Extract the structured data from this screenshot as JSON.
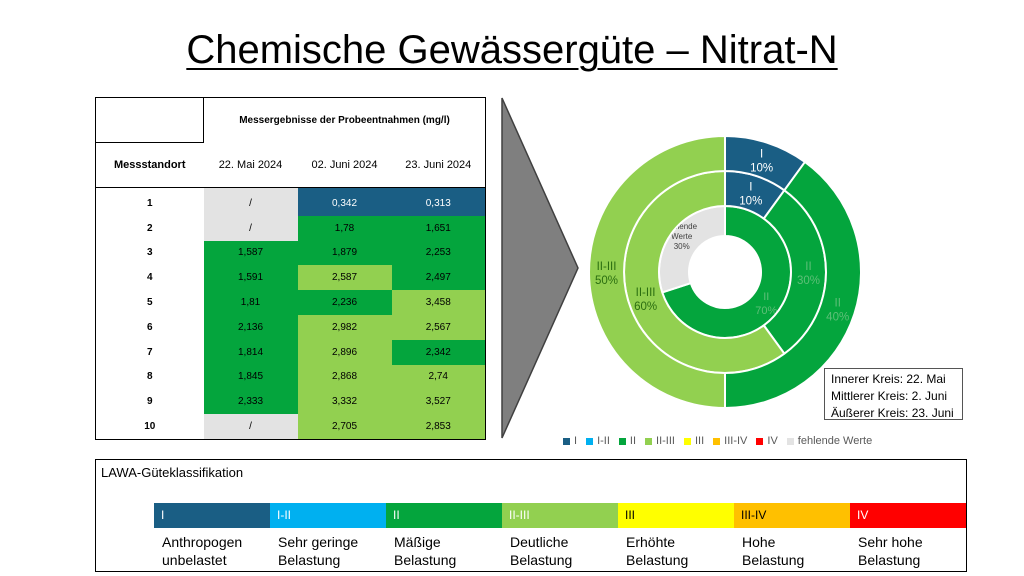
{
  "title": "Chemische Gewässergüte – Nitrat-N",
  "table": {
    "header_main": "Messergebnisse der Probeentnahmen (mg/l)",
    "header_location": "Messstandort",
    "dates": [
      "22. Mai 2024",
      "02. Juni 2024",
      "23. Juni 2024"
    ],
    "rows": [
      {
        "id": "1",
        "values": [
          "/",
          "0,342",
          "0,313"
        ],
        "classes": [
          "gray",
          "I",
          "I"
        ]
      },
      {
        "id": "2",
        "values": [
          "/",
          "1,78",
          "1,651"
        ],
        "classes": [
          "gray",
          "II",
          "II"
        ]
      },
      {
        "id": "3",
        "values": [
          "1,587",
          "1,879",
          "2,253"
        ],
        "classes": [
          "II",
          "II",
          "II"
        ]
      },
      {
        "id": "4",
        "values": [
          "1,591",
          "2,587",
          "2,497"
        ],
        "classes": [
          "II",
          "II-III",
          "II"
        ]
      },
      {
        "id": "5",
        "values": [
          "1,81",
          "2,236",
          "3,458"
        ],
        "classes": [
          "II",
          "II",
          "II-III"
        ]
      },
      {
        "id": "6",
        "values": [
          "2,136",
          "2,982",
          "2,567"
        ],
        "classes": [
          "II",
          "II-III",
          "II-III"
        ]
      },
      {
        "id": "7",
        "values": [
          "1,814",
          "2,896",
          "2,342"
        ],
        "classes": [
          "II",
          "II-III",
          "II"
        ]
      },
      {
        "id": "8",
        "values": [
          "1,845",
          "2,868",
          "2,74"
        ],
        "classes": [
          "II",
          "II-III",
          "II-III"
        ]
      },
      {
        "id": "9",
        "values": [
          "2,333",
          "3,332",
          "3,527"
        ],
        "classes": [
          "II",
          "II-III",
          "II-III"
        ]
      },
      {
        "id": "10",
        "values": [
          "/",
          "2,705",
          "2,853"
        ],
        "classes": [
          "gray",
          "II-III",
          "II-III"
        ]
      }
    ]
  },
  "chart_data": {
    "type": "donut",
    "rings": [
      {
        "name": "22. Mai",
        "position": "inner",
        "slices": [
          {
            "label": "II",
            "value": 70,
            "text": "70%"
          },
          {
            "label": "fehlende Werte",
            "value": 30,
            "text": "30%"
          }
        ]
      },
      {
        "name": "2. Juni",
        "position": "middle",
        "slices": [
          {
            "label": "I",
            "value": 10,
            "text": "10%"
          },
          {
            "label": "II",
            "value": 30,
            "text": "30%"
          },
          {
            "label": "II-III",
            "value": 60,
            "text": "60%"
          }
        ]
      },
      {
        "name": "23. Juni",
        "position": "outer",
        "slices": [
          {
            "label": "I",
            "value": 10,
            "text": "10%"
          },
          {
            "label": "II",
            "value": 40,
            "text": "40%"
          },
          {
            "label": "II-III",
            "value": 50,
            "text": "50%"
          }
        ]
      }
    ],
    "inner_missing_label_lines": [
      "fehlende",
      "Werte"
    ],
    "ring_legend": [
      "Innerer Kreis: 22. Mai",
      "Mittlerer Kreis: 2. Juni",
      "Äußerer Kreis: 23. Juni"
    ],
    "legend": [
      {
        "label": "I",
        "color": "#1a5e84"
      },
      {
        "label": "I-II",
        "color": "#00b0f0"
      },
      {
        "label": "II",
        "color": "#04a53d"
      },
      {
        "label": "II-III",
        "color": "#92d050"
      },
      {
        "label": "III",
        "color": "#ffff00"
      },
      {
        "label": "III-IV",
        "color": "#ffc000"
      },
      {
        "label": "IV",
        "color": "#ff0000"
      },
      {
        "label": "fehlende Werte",
        "color": "#e3e3e3"
      }
    ]
  },
  "lawa": {
    "title": "LAWA-Güteklassifikation",
    "classes": [
      {
        "label": "I",
        "color": "#1a5e84",
        "desc1": "Anthropogen",
        "desc2": "unbelastet"
      },
      {
        "label": "I-II",
        "color": "#00b0f0",
        "desc1": "Sehr geringe",
        "desc2": "Belastung"
      },
      {
        "label": "II",
        "color": "#04a53d",
        "desc1": "Mäßige",
        "desc2": "Belastung"
      },
      {
        "label": "II-III",
        "color": "#92d050",
        "desc1": "Deutliche",
        "desc2": "Belastung"
      },
      {
        "label": "III",
        "color": "#ffff00",
        "desc1": "Erhöhte",
        "desc2": "Belastung"
      },
      {
        "label": "III-IV",
        "color": "#ffc000",
        "desc1": "Hohe",
        "desc2": "Belastung"
      },
      {
        "label": "IV",
        "color": "#ff0000",
        "desc1": "Sehr hohe",
        "desc2": "Belastung"
      }
    ]
  }
}
